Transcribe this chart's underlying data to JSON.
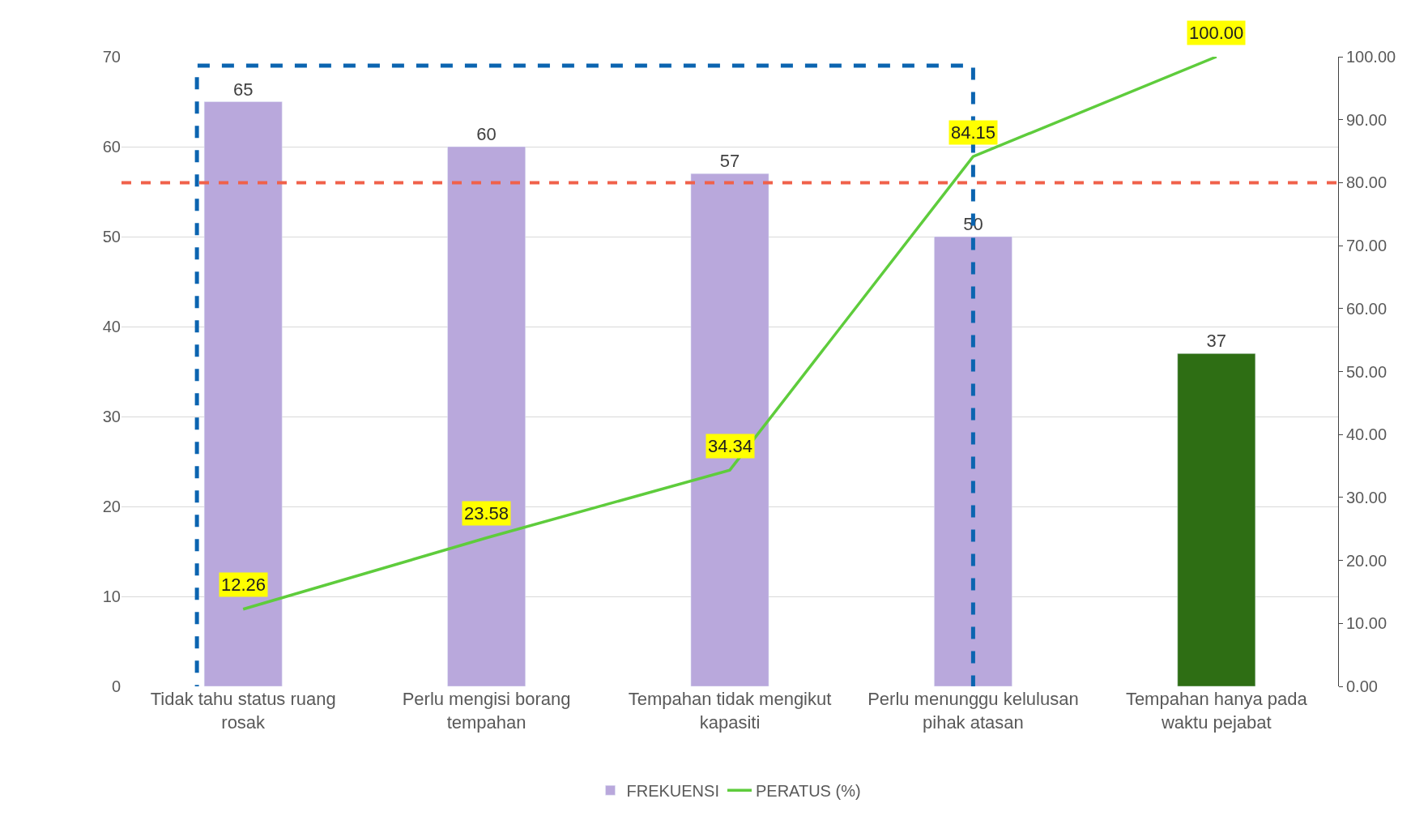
{
  "chart_data": {
    "type": "bar",
    "categories": [
      "Tidak tahu status ruang rosak",
      "Perlu mengisi borang tempahan",
      "Tempahan tidak mengikut kapasiti",
      "Perlu menunggu kelulusan pihak atasan",
      "Tempahan hanya pada waktu pejabat"
    ],
    "series": [
      {
        "name": "FREKUENSI",
        "color": "#b9a8dc",
        "colors": [
          null,
          null,
          null,
          null,
          "#2e6e14"
        ],
        "values": [
          65,
          60,
          57,
          50,
          37
        ],
        "value_labels": [
          "65",
          "60",
          "57",
          "50",
          "37"
        ]
      },
      {
        "name": "PERATUS (%)",
        "type": "line",
        "axis": "y2",
        "color": "#5ecc3c",
        "values": [
          12.26,
          23.58,
          34.34,
          84.15,
          100.0
        ],
        "value_labels": [
          "12.26",
          "23.58",
          "34.34",
          "84.15",
          "100.00"
        ]
      }
    ],
    "ylim": [
      0,
      70
    ],
    "yticks": [
      0,
      10,
      20,
      30,
      40,
      50,
      60,
      70
    ],
    "y2lim": [
      0,
      100
    ],
    "y2ticks": [
      {
        "value": 0,
        "label": "0.00"
      },
      {
        "value": 10,
        "label": "10.00"
      },
      {
        "value": 20,
        "label": "20.00"
      },
      {
        "value": 30,
        "label": "30.00"
      },
      {
        "value": 40,
        "label": "40.00"
      },
      {
        "value": 50,
        "label": "50.00"
      },
      {
        "value": 60,
        "label": "60.00"
      },
      {
        "value": 70,
        "label": "70.00"
      },
      {
        "value": 80,
        "label": "80.00"
      },
      {
        "value": 90,
        "label": "90.00"
      },
      {
        "value": 100,
        "label": "100.00"
      }
    ],
    "ref_lines": [
      {
        "axis": "y2",
        "value": 80,
        "color": "#f0614a",
        "line_style": "dashed"
      }
    ],
    "grid": "y",
    "legend": "bottom",
    "marker": "none",
    "line_style": "solid"
  }
}
